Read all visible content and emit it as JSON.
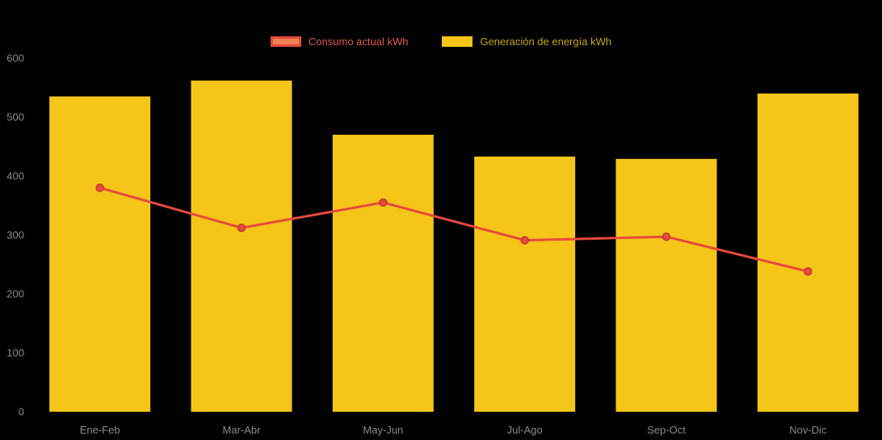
{
  "chart_data": {
    "type": "bar",
    "title": "",
    "xlabel": "",
    "ylabel": "",
    "categories": [
      "Ene-Feb",
      "Mar-Abr",
      "May-Jun",
      "Jul-Ago",
      "Sep-Oct",
      "Nov-Dic"
    ],
    "series": [
      {
        "name": "Consumo actual kWh",
        "type": "line",
        "color": "#e8493e",
        "marker_border": "#c0392b",
        "values": [
          380,
          312,
          355,
          291,
          297,
          238
        ]
      },
      {
        "name": "Generación de energía kWh",
        "type": "bar",
        "color": "#f5c518",
        "values": [
          535,
          562,
          470,
          433,
          429,
          540
        ]
      }
    ],
    "ylim": [
      0,
      600
    ],
    "ytick_step": 100,
    "yticks": [
      0,
      100,
      200,
      300,
      400,
      500,
      600
    ],
    "legend_position": "top",
    "grid": false,
    "colors": {
      "background": "#000000",
      "axis_text": "#8a8a8a",
      "legend_consumo_text": "#e05a4e",
      "legend_generacion_text": "#c7a60e",
      "line_swatch_fill": "#f08050",
      "line_swatch_border": "#e8493e"
    }
  }
}
